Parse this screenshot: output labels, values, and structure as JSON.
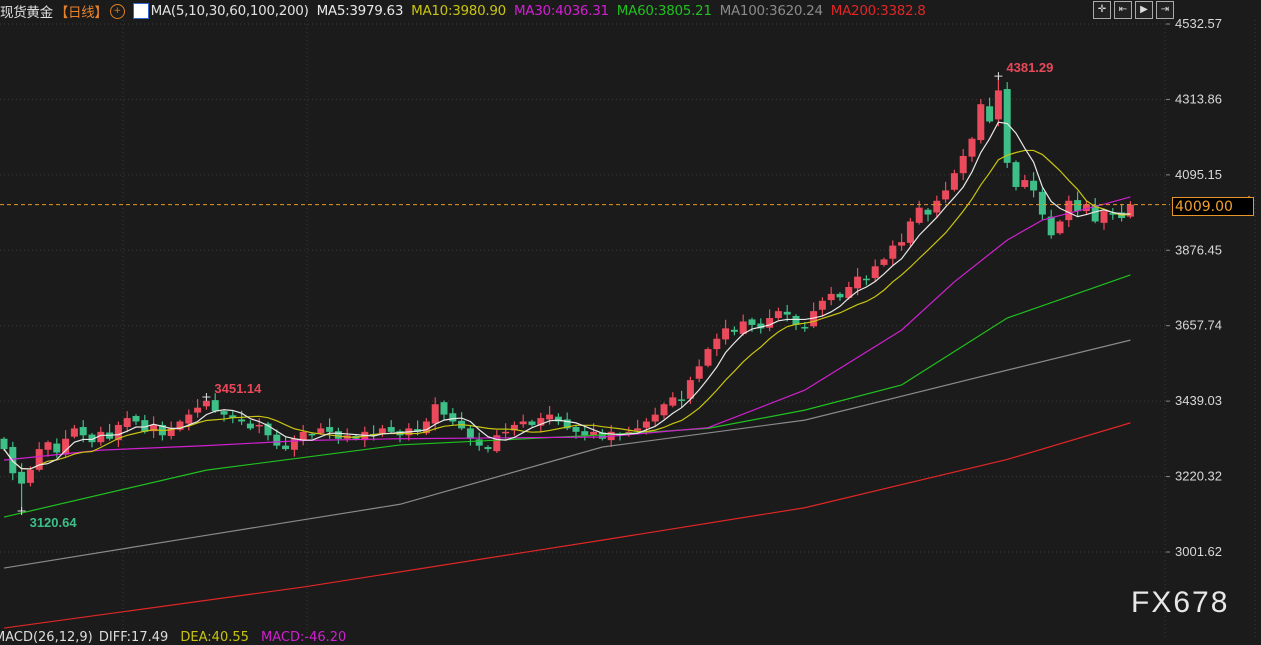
{
  "header": {
    "title": "现货黄金",
    "period": "【日线】",
    "period_icon": "circle-plus-icon",
    "ma_icon": "chart-icon",
    "ma_params": "MA(5,10,30,60,100,200)",
    "ma5": "MA5:3979.63",
    "ma10": "MA10:3980.90",
    "ma30": "MA30:4036.31",
    "ma60": "MA60:3805.21",
    "ma100": "MA100:3620.24",
    "ma200": "MA200:3382.8"
  },
  "toolbar": [
    "crosshair-icon",
    "scroll-left-icon",
    "play-icon",
    "scroll-end-icon"
  ],
  "watermark": "FX678",
  "macd": {
    "label": "MACD(26,12,9)",
    "diff": "DIFF:17.49",
    "dea": "DEA:40.55",
    "macd": "MACD:-46.20"
  },
  "colors": {
    "up": "#ea4a5c",
    "down": "#3dbf87",
    "ma5": "#e8e8e8",
    "ma10": "#c8c410",
    "ma30": "#d020d0",
    "ma60": "#20c020",
    "ma100": "#8a8a8a",
    "ma200": "#e02626",
    "current": "#e8962a"
  },
  "chart_data": {
    "type": "candlestick",
    "ylim": [
      3001.62,
      4532.57
    ],
    "y_ticks": [
      "4532.57",
      "4313.86",
      "4095.15",
      "3876.45",
      "3657.74",
      "3439.03",
      "3220.32",
      "3001.62"
    ],
    "current_price": "4009.00",
    "annotations": [
      {
        "index": 113,
        "label": "4381.29",
        "type": "high"
      },
      {
        "index": 23,
        "label": "3451.14",
        "type": "high"
      },
      {
        "index": 2,
        "label": "3120.64",
        "type": "low"
      }
    ],
    "closes": [
      3300,
      3230,
      3200,
      3240,
      3300,
      3320,
      3290,
      3330,
      3360,
      3340,
      3320,
      3350,
      3330,
      3370,
      3390,
      3380,
      3350,
      3370,
      3340,
      3360,
      3380,
      3400,
      3420,
      3440,
      3410,
      3400,
      3390,
      3380,
      3360,
      3370,
      3340,
      3310,
      3300,
      3330,
      3350,
      3340,
      3360,
      3350,
      3330,
      3340,
      3330,
      3350,
      3340,
      3360,
      3350,
      3340,
      3360,
      3350,
      3380,
      3430,
      3400,
      3380,
      3360,
      3330,
      3310,
      3300,
      3340,
      3350,
      3370,
      3380,
      3370,
      3390,
      3400,
      3380,
      3360,
      3350,
      3340,
      3350,
      3330,
      3350,
      3340,
      3350,
      3360,
      3380,
      3400,
      3430,
      3450,
      3440,
      3500,
      3540,
      3590,
      3620,
      3650,
      3640,
      3670,
      3660,
      3650,
      3680,
      3700,
      3690,
      3660,
      3650,
      3700,
      3730,
      3750,
      3740,
      3770,
      3800,
      3790,
      3830,
      3850,
      3890,
      3900,
      3960,
      4000,
      3980,
      4020,
      4050,
      4100,
      4150,
      4200,
      4300,
      4250,
      4340,
      4130,
      4060,
      4080,
      4050,
      3980,
      3920,
      3960,
      4020,
      3990,
      4010,
      3960,
      3990,
      3980,
      3970,
      4009
    ],
    "ma_series": {
      "ma30": [
        [
          0,
          3268
        ],
        [
          11,
          3297
        ],
        [
          23,
          3310
        ],
        [
          34,
          3325
        ],
        [
          45,
          3330
        ],
        [
          68,
          3335
        ],
        [
          80,
          3362
        ],
        [
          91,
          3471
        ],
        [
          102,
          3645
        ],
        [
          108,
          3785
        ],
        [
          114,
          3906
        ],
        [
          118,
          3964
        ],
        [
          125,
          4010
        ],
        [
          128,
          4031
        ]
      ],
      "ma60": [
        [
          0,
          3103
        ],
        [
          23,
          3239
        ],
        [
          45,
          3312
        ],
        [
          68,
          3341
        ],
        [
          80,
          3360
        ],
        [
          91,
          3413
        ],
        [
          102,
          3486
        ],
        [
          114,
          3680
        ],
        [
          128,
          3805
        ]
      ],
      "ma100": [
        [
          0,
          2955
        ],
        [
          23,
          3050
        ],
        [
          45,
          3140
        ],
        [
          68,
          3306
        ],
        [
          91,
          3384
        ],
        [
          114,
          3529
        ],
        [
          128,
          3616
        ]
      ],
      "ma200": [
        [
          0,
          2781
        ],
        [
          34,
          2900
        ],
        [
          68,
          3036
        ],
        [
          91,
          3130
        ],
        [
          114,
          3270
        ],
        [
          128,
          3376
        ]
      ]
    }
  }
}
